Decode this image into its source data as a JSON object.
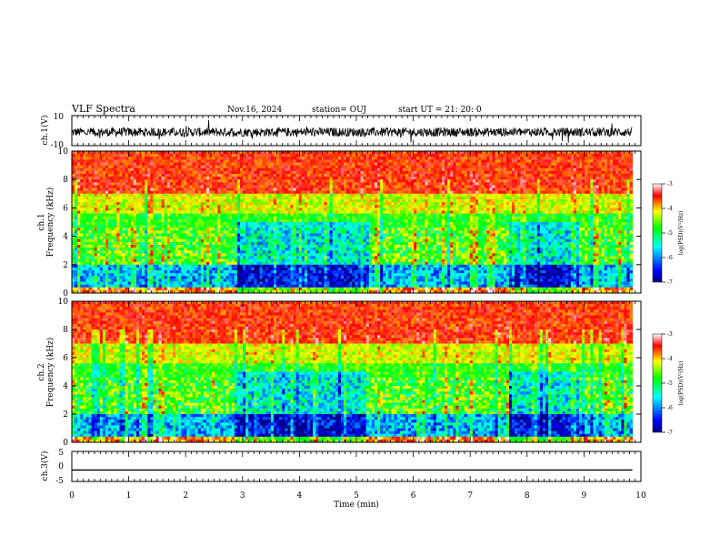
{
  "header": {
    "title": "VLF Spectra",
    "date": "Nov.16, 2024",
    "station": "station= OUJ",
    "start": "start  UT =  21: 20: 0"
  },
  "chart_data": [
    {
      "type": "line",
      "panel": "ch1-waveform",
      "ylabel": "ch.1(V)",
      "ylim": [
        -10,
        10
      ],
      "y_tick_labels": [
        "10",
        "-10"
      ],
      "xlim": [
        0,
        9.85
      ],
      "description_values": {
        "baseline": -1,
        "noise_amplitude": 3
      }
    },
    {
      "type": "heatmap",
      "panel": "ch1-spectrogram",
      "ylabel_channel": "ch.1",
      "ylabel": "Frequency  (kHz)",
      "ylim": [
        0,
        10
      ],
      "y_tick_labels": [
        "0",
        "2",
        "4",
        "6",
        "8",
        "10"
      ],
      "xlim": [
        0,
        9.85
      ],
      "colorbar": {
        "label": "log(PSD)(V²/Hz)",
        "range": [
          -7,
          -3
        ],
        "tick_labels": [
          "-3",
          "-4",
          "-5",
          "-6",
          "-7"
        ]
      },
      "quiet_intervals_min": [
        [
          2.9,
          5.2
        ],
        [
          7.7,
          8.9
        ]
      ]
    },
    {
      "type": "heatmap",
      "panel": "ch2-spectrogram",
      "ylabel_channel": "ch.2",
      "ylabel": "Frequency  (kHz)",
      "ylim": [
        0,
        10
      ],
      "y_tick_labels": [
        "0",
        "2",
        "4",
        "6",
        "8",
        "10"
      ],
      "xlim": [
        0,
        9.85
      ],
      "colorbar": {
        "label": "log(PSD)(V²/Hz)",
        "range": [
          -7,
          -3
        ],
        "tick_labels": [
          "-3",
          "-4",
          "-5",
          "-6",
          "-7"
        ]
      },
      "quiet_intervals_min": [
        [
          2.9,
          5.2
        ],
        [
          7.7,
          8.9
        ]
      ]
    },
    {
      "type": "line",
      "panel": "ch3-waveform",
      "ylabel": "ch.3(V)",
      "ylim": [
        -5,
        5
      ],
      "y_tick_labels": [
        "5",
        "0",
        "-5"
      ],
      "xlim": [
        0,
        9.85
      ],
      "values_constant": -1.2
    }
  ],
  "xaxis": {
    "label": "Time  (min)",
    "range": [
      0,
      10
    ],
    "tick_labels": [
      "0",
      "1",
      "2",
      "3",
      "4",
      "5",
      "6",
      "7",
      "8",
      "9",
      "10"
    ]
  }
}
